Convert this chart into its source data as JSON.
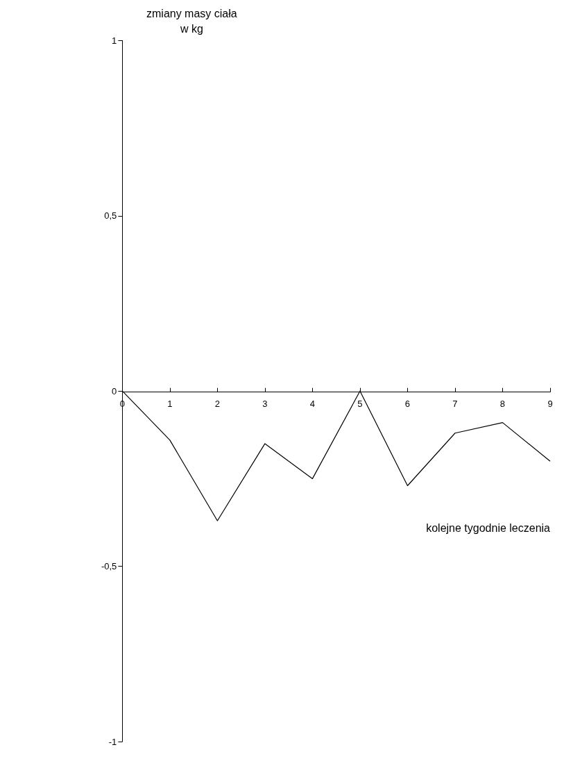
{
  "chart_data": {
    "type": "line",
    "xlabel": "kolejne tygodnie leczenia",
    "ylabel": "zmiany masy ciała\nw kg",
    "x": [
      0,
      1,
      2,
      3,
      4,
      5,
      6,
      7,
      8,
      9
    ],
    "series": [
      {
        "color": "#000000",
        "values": [
          0,
          -0.14,
          -0.37,
          -0.15,
          -0.25,
          0,
          -0.27,
          -0.12,
          -0.09,
          -0.2
        ]
      }
    ],
    "xlim": [
      0,
      9
    ],
    "xticks": [
      0,
      1,
      2,
      3,
      4,
      5,
      6,
      7,
      8,
      9
    ],
    "ylim": [
      -1,
      1
    ],
    "yticks": [
      {
        "value": -1,
        "label": "-1"
      },
      {
        "value": -0.5,
        "label": "-0,5"
      },
      {
        "value": 0,
        "label": "0"
      },
      {
        "value": 0.5,
        "label": "0,5"
      },
      {
        "value": 1,
        "label": "1"
      }
    ],
    "marker": "none",
    "line_style": "solid"
  }
}
